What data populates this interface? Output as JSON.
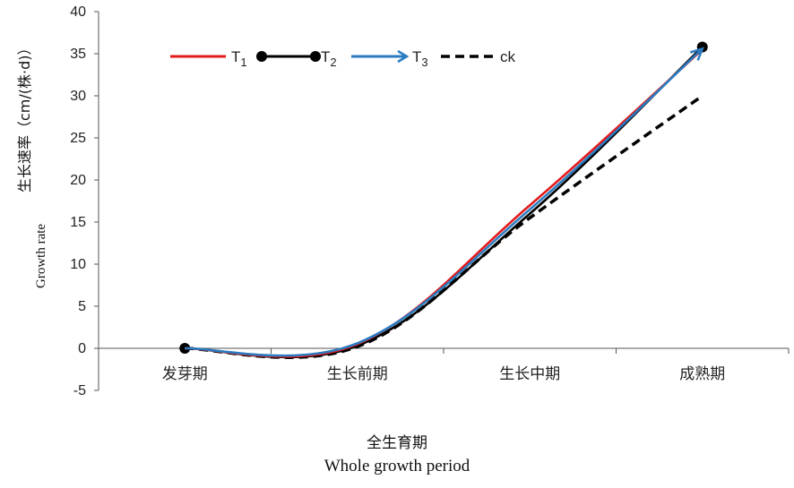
{
  "chart_data": {
    "type": "line",
    "categories": [
      "发芽期",
      "生长前期",
      "生长中期",
      "成熟期"
    ],
    "ylim": [
      -5,
      40
    ],
    "yticks": [
      -5,
      0,
      5,
      10,
      15,
      20,
      25,
      30,
      35,
      40
    ],
    "legend_position": "top-left",
    "grid": false,
    "series": [
      {
        "name": "T1",
        "label_main": "T",
        "label_sub": "1",
        "color": "#e31a1c",
        "style": "solid",
        "marker": "none",
        "values": [
          0,
          0.5,
          17,
          35.5
        ]
      },
      {
        "name": "T2",
        "label_main": "T",
        "label_sub": "2",
        "color": "#000000",
        "style": "solid",
        "marker": "circle",
        "values": [
          0,
          0.3,
          16,
          35.8
        ]
      },
      {
        "name": "T3",
        "label_main": "T",
        "label_sub": "3",
        "color": "#2b7bc0",
        "style": "solid",
        "marker": "arrow",
        "values": [
          0,
          0.6,
          16.5,
          35.6
        ]
      },
      {
        "name": "ck",
        "label_main": "ck",
        "label_sub": "",
        "color": "#000000",
        "style": "dashed",
        "marker": "none",
        "values": [
          0,
          0.2,
          15.5,
          30
        ]
      }
    ],
    "xlabel_cn": "全生育期",
    "xlabel_en": "Whole growth period",
    "ylabel_cn": "生长速率（cm/(株·d)）",
    "ylabel_en": "Growth rate"
  }
}
